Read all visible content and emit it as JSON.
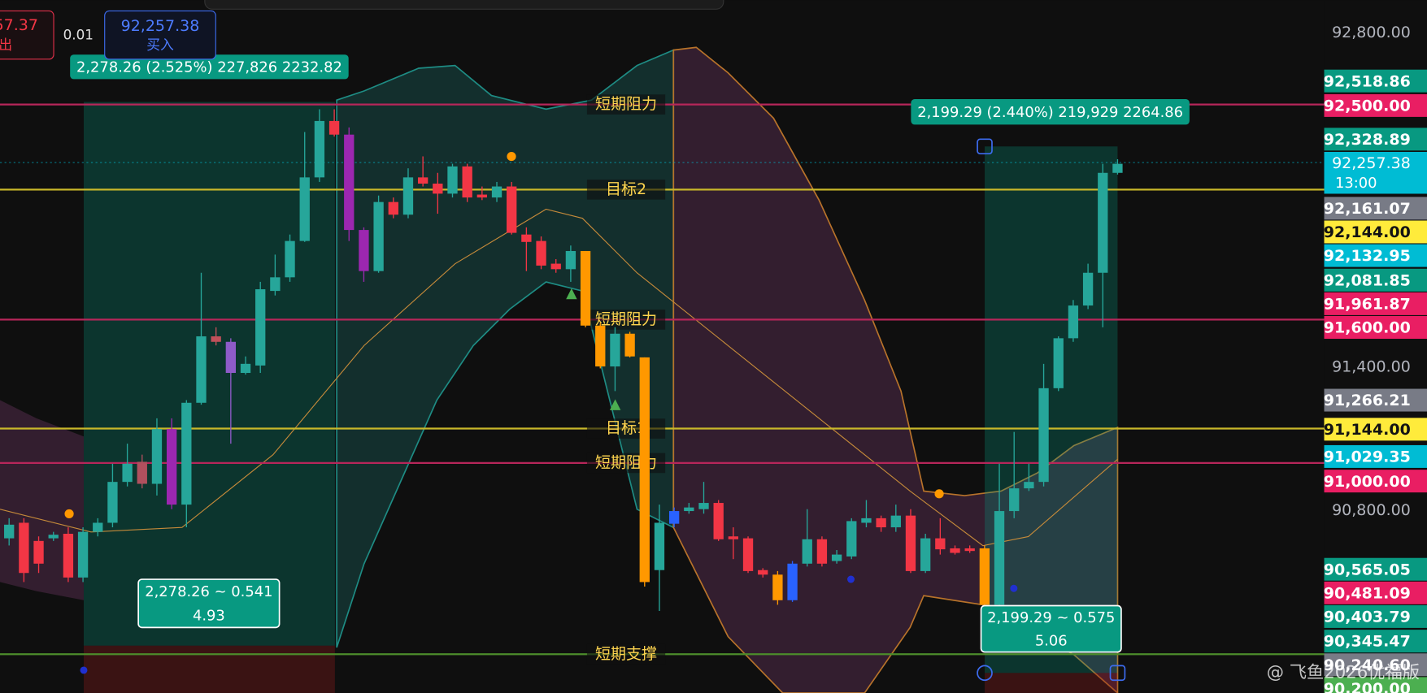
{
  "chart_data": {
    "type": "candlestick",
    "ylim": [
      90038,
      92937
    ],
    "yticks": [
      {
        "value": 92800,
        "label": "92,800.00"
      },
      {
        "value": 91400,
        "label": "91,400.00"
      },
      {
        "value": 90800,
        "label": "90,800.00"
      }
    ],
    "open": [
      90685,
      90750,
      90674,
      90685,
      90704,
      90521,
      90712,
      90750,
      90921,
      91005,
      90913,
      91142,
      90826,
      91252,
      91530,
      91507,
      91377,
      91408,
      91720,
      91777,
      91929,
      92195,
      92431,
      92374,
      91975,
      91803,
      92092,
      92039,
      92195,
      92169,
      92127,
      92241,
      92123,
      92111,
      92157,
      91956,
      91929,
      91834,
      91811,
      91887,
      91575,
      91404,
      91541,
      91442,
      90552,
      90746,
      90799,
      90807,
      90833,
      90693,
      90685,
      90552,
      90533,
      90426,
      90579,
      90681,
      90590,
      90609,
      90750,
      90769,
      90731,
      90780,
      90548,
      90685,
      90643,
      90643,
      90643,
      90407,
      90799,
      90894,
      90921,
      91313,
      91522,
      91659,
      91796,
      92214
    ],
    "high": [
      90769,
      90769,
      90693,
      90712,
      90731,
      90731,
      90769,
      90997,
      91081,
      91035,
      91187,
      91187,
      91263,
      91796,
      91568,
      91522,
      91446,
      91758,
      91872,
      91956,
      92385,
      92480,
      92480,
      92404,
      91986,
      92119,
      92111,
      92233,
      92283,
      92214,
      92252,
      92252,
      92157,
      92176,
      92176,
      91986,
      91948,
      91853,
      91910,
      91887,
      91586,
      91568,
      91549,
      91442,
      90826,
      90814,
      90833,
      90921,
      90845,
      90731,
      90693,
      90560,
      90548,
      90590,
      90807,
      90693,
      90636,
      90769,
      90845,
      90780,
      90826,
      90807,
      90704,
      90769,
      90655,
      90655,
      90655,
      90997,
      91130,
      90997,
      91415,
      91530,
      91682,
      91834,
      92252,
      92271
    ],
    "low": [
      90655,
      90502,
      90540,
      90674,
      90502,
      90502,
      90693,
      90731,
      90902,
      90894,
      90864,
      90807,
      90731,
      91244,
      91492,
      91081,
      91370,
      91377,
      91701,
      91758,
      91925,
      92176,
      92366,
      91929,
      91758,
      91796,
      92024,
      92024,
      92157,
      92043,
      92111,
      92092,
      92100,
      92092,
      91956,
      91803,
      91811,
      91796,
      91758,
      91568,
      91396,
      91301,
      91442,
      90483,
      90381,
      90731,
      90788,
      90788,
      90674,
      90598,
      90540,
      90521,
      90407,
      90419,
      90567,
      90567,
      90579,
      90598,
      90731,
      90712,
      90712,
      90540,
      90540,
      90617,
      90617,
      90624,
      90388,
      90388,
      90769,
      90883,
      90902,
      91301,
      91507,
      91644,
      91568,
      92207
    ],
    "close": [
      90742,
      90540,
      90579,
      90700,
      90521,
      90712,
      90750,
      90921,
      90997,
      90913,
      91142,
      90826,
      91252,
      91530,
      91507,
      91377,
      91415,
      91727,
      91777,
      91929,
      92195,
      92431,
      92374,
      91975,
      91803,
      92092,
      92039,
      92195,
      92169,
      92127,
      92241,
      92111,
      92111,
      92157,
      91963,
      91925,
      91826,
      91811,
      91887,
      91575,
      91404,
      91541,
      91446,
      90502,
      90750,
      90799,
      90814,
      90833,
      90681,
      90681,
      90548,
      90533,
      90426,
      90579,
      90681,
      90579,
      90617,
      90757,
      90769,
      90731,
      90780,
      90548,
      90685,
      90639,
      90624,
      90632,
      90407,
      90799,
      90894,
      90921,
      91313,
      91522,
      91659,
      91796,
      92214,
      92252
    ],
    "colors": [
      "#26a69a",
      "#f23645",
      "#f23645",
      "#26a69a",
      "#f23645",
      "#26a69a",
      "#26a69a",
      "#26a69a",
      "#26a69a",
      "#b0505e",
      "#26a69a",
      "#9c27b0",
      "#26a69a",
      "#26a69a",
      "#c0505a",
      "#8e5bc8",
      "#26a69a",
      "#26a69a",
      "#26a69a",
      "#26a69a",
      "#26a69a",
      "#26a69a",
      "#f23645",
      "#9c27b0",
      "#9c27b0",
      "#26a69a",
      "#f23645",
      "#26a69a",
      "#f23645",
      "#f23645",
      "#26a69a",
      "#f23645",
      "#f23645",
      "#26a69a",
      "#f23645",
      "#f23645",
      "#f23645",
      "#f23645",
      "#26a69a",
      "#ff9800",
      "#ff9800",
      "#26a69a",
      "#ff9800",
      "#ff9800",
      "#26a69a",
      "#2962ff",
      "#26a69a",
      "#26a69a",
      "#f23645",
      "#f23645",
      "#f23645",
      "#f23645",
      "#ff9800",
      "#2962ff",
      "#26a69a",
      "#f23645",
      "#26a69a",
      "#26a69a",
      "#26a69a",
      "#f23645",
      "#26a69a",
      "#f23645",
      "#26a69a",
      "#f23645",
      "#f23645",
      "#f23645",
      "#ff9800",
      "#26a69a",
      "#26a69a",
      "#26a69a",
      "#26a69a",
      "#26a69a",
      "#26a69a",
      "#26a69a",
      "#26a69a",
      "#26a69a"
    ],
    "levels": [
      {
        "name": "短期阻力",
        "value": 92500,
        "color": "#b7265a"
      },
      {
        "name": "目标2",
        "value": 92144,
        "color": "#c9b82a"
      },
      {
        "name": "短期阻力",
        "value": 91600,
        "color": "#b7265a"
      },
      {
        "name": "目标1",
        "value": 91144,
        "color": "#c9b82a"
      },
      {
        "name": "短期阻力",
        "value": 91000,
        "color": "#b7265a"
      },
      {
        "name": "短期支撑",
        "value": 90200,
        "color": "#4c8c2b"
      }
    ],
    "last_price": {
      "value": 92257.38,
      "label": "92,257.38",
      "time": "13:00",
      "color": "#00bcd4"
    },
    "price_badges": [
      {
        "value": 92518.86,
        "label": "92,518.86",
        "color": "#089981"
      },
      {
        "value": 92500,
        "label": "92,500.00",
        "color": "#e91e63"
      },
      {
        "value": 92328.89,
        "label": "92,328.89",
        "color": "#089981"
      },
      {
        "value": 92161.07,
        "label": "92,161.07",
        "color": "#787b86"
      },
      {
        "value": 92144,
        "label": "92,144.00",
        "color": "#ffeb3b"
      },
      {
        "value": 92132.95,
        "label": "92,132.95",
        "color": "#00bcd4"
      },
      {
        "value": 92081.85,
        "label": "92,081.85",
        "color": "#089981"
      },
      {
        "value": 91961.87,
        "label": "91,961.87",
        "color": "#e91e63"
      },
      {
        "value": 91600,
        "label": "91,600.00",
        "color": "#e91e63"
      },
      {
        "value": 91266.21,
        "label": "91,266.21",
        "color": "#787b86"
      },
      {
        "value": 91144,
        "label": "91,144.00",
        "color": "#ffeb3b"
      },
      {
        "value": 91029.35,
        "label": "91,029.35",
        "color": "#00bcd4"
      },
      {
        "value": 91000,
        "label": "91,000.00",
        "color": "#e91e63"
      },
      {
        "value": 90565.05,
        "label": "90,565.05",
        "color": "#089981"
      },
      {
        "value": 90481.09,
        "label": "90,481.09",
        "color": "#e91e63"
      },
      {
        "value": 90403.79,
        "label": "90,403.79",
        "color": "#089981"
      },
      {
        "value": 90345.47,
        "label": "90,345.47",
        "color": "#089981"
      },
      {
        "value": 90240.6,
        "label": "90,240.60",
        "color": "#787b86"
      },
      {
        "value": 90200,
        "label": "90,200.00",
        "color": "#4caf50"
      }
    ],
    "measures": [
      {
        "lines": [
          "2,278.26 (2.525%) 227,826 2232.82"
        ]
      },
      {
        "lines": [
          "2,199.29 (2.440%) 219,929 2264.86"
        ]
      },
      {
        "lines": [
          "2,278.26 ~ 0.541",
          "4.93"
        ]
      },
      {
        "lines": [
          "2,199.29 ~ 0.575",
          "5.06"
        ]
      }
    ]
  },
  "order_panel": {
    "sell_price": "57.37",
    "sell_label": "出",
    "quantity": "0.01",
    "buy_price": "92,257.38",
    "buy_label": "买入"
  },
  "watermark": "@ 飞鱼2026优福版"
}
